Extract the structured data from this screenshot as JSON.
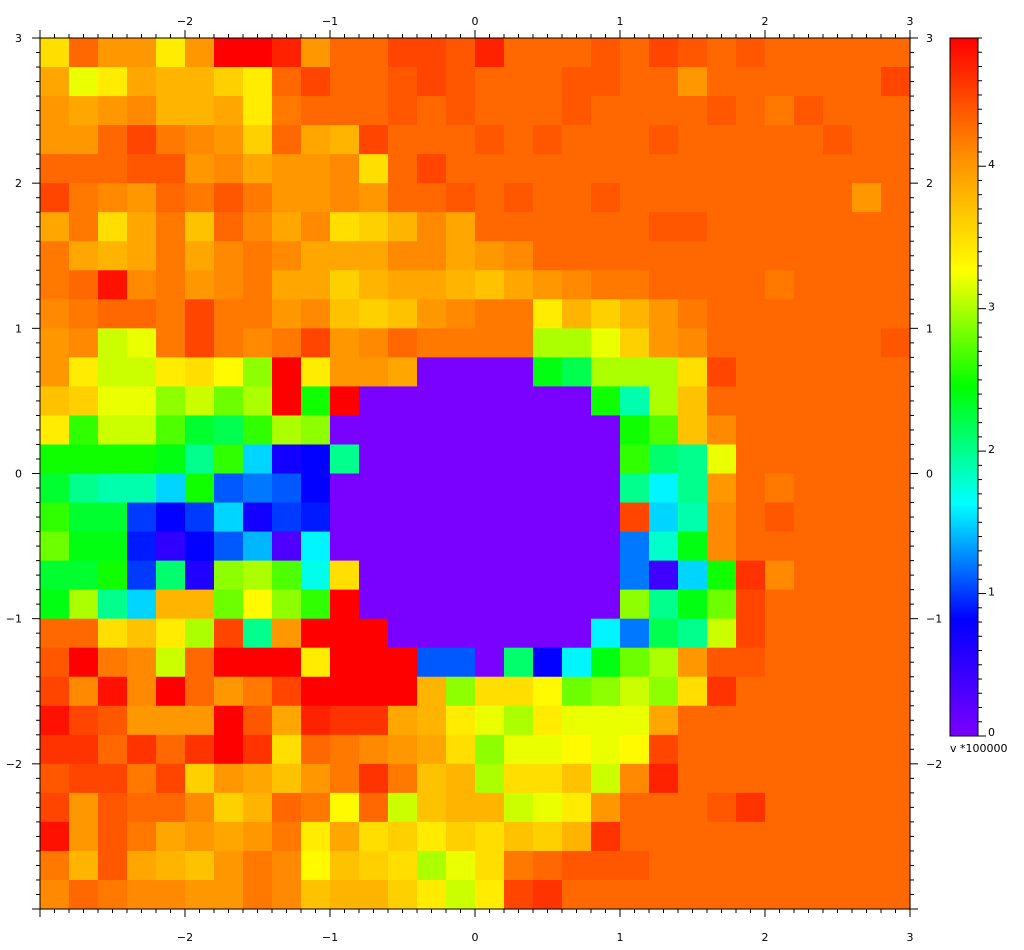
{
  "chart_data": {
    "type": "heatmap",
    "title": "",
    "xlabel": "",
    "ylabel": "",
    "xlim": [
      -3,
      3
    ],
    "ylim": [
      -3,
      3
    ],
    "x_ticks": [
      -2,
      -1,
      0,
      1,
      2,
      3
    ],
    "y_ticks": [
      3,
      2,
      1,
      0,
      -1,
      -2
    ],
    "x_tick_labels": [
      "−2",
      "−1",
      "0",
      "1",
      "2",
      "3"
    ],
    "y_tick_labels": [
      "3",
      "2",
      "1",
      "0",
      "−1",
      "−2"
    ],
    "grid": false,
    "colorbar": {
      "label": "v *100000",
      "range": [
        0,
        4.9
      ],
      "ticks": [
        0,
        1,
        2,
        3,
        4
      ],
      "tick_labels": [
        "0",
        "1",
        "2",
        "3",
        "4"
      ],
      "colormap": [
        "#7a00ff",
        "#0000ff",
        "#00ffff",
        "#00ff00",
        "#ffff00",
        "#ff8c00",
        "#ff0000"
      ]
    },
    "n_cols": 30,
    "n_rows": 30,
    "grid_values": [
      [
        3.5,
        4.3,
        4.0,
        4.0,
        3.4,
        4.0,
        4.9,
        4.9,
        4.7,
        4.0,
        4.3,
        4.3,
        4.5,
        4.5,
        4.4,
        4.7,
        4.3,
        4.3,
        4.3,
        4.4,
        4.3,
        4.5,
        4.4,
        4.3,
        4.4,
        4.3,
        4.3,
        4.3,
        4.3,
        4.3
      ],
      [
        3.9,
        3.2,
        3.4,
        3.9,
        3.8,
        3.8,
        3.6,
        3.4,
        4.3,
        4.5,
        4.3,
        4.3,
        4.4,
        4.5,
        4.4,
        4.3,
        4.3,
        4.3,
        4.4,
        4.4,
        4.3,
        4.3,
        4.0,
        4.3,
        4.3,
        4.3,
        4.3,
        4.3,
        4.3,
        4.5
      ],
      [
        4.0,
        3.9,
        4.0,
        4.1,
        3.8,
        3.8,
        3.9,
        3.4,
        4.2,
        4.3,
        4.3,
        4.3,
        4.4,
        4.3,
        4.4,
        4.3,
        4.3,
        4.3,
        4.4,
        4.3,
        4.3,
        4.3,
        4.3,
        4.4,
        4.3,
        4.2,
        4.4,
        4.3,
        4.3,
        4.3
      ],
      [
        4.0,
        4.0,
        4.3,
        4.5,
        4.2,
        4.1,
        4.0,
        3.6,
        4.3,
        3.9,
        3.8,
        4.5,
        4.3,
        4.3,
        4.3,
        4.4,
        4.3,
        4.4,
        4.3,
        4.3,
        4.3,
        4.4,
        4.3,
        4.3,
        4.3,
        4.3,
        4.3,
        4.4,
        4.3,
        4.3
      ],
      [
        4.3,
        4.3,
        4.3,
        4.4,
        4.4,
        4.0,
        4.1,
        3.9,
        4.0,
        4.0,
        4.1,
        3.5,
        4.3,
        4.5,
        4.3,
        4.3,
        4.3,
        4.3,
        4.3,
        4.3,
        4.3,
        4.3,
        4.3,
        4.3,
        4.3,
        4.3,
        4.3,
        4.3,
        4.3,
        4.3
      ],
      [
        4.5,
        4.2,
        4.1,
        4.0,
        4.3,
        4.2,
        4.4,
        4.2,
        4.0,
        4.0,
        4.1,
        4.0,
        4.3,
        4.3,
        4.4,
        4.3,
        4.4,
        4.3,
        4.3,
        4.4,
        4.3,
        4.3,
        4.3,
        4.3,
        4.3,
        4.3,
        4.3,
        4.3,
        4.0,
        4.3
      ],
      [
        3.9,
        4.2,
        3.5,
        3.9,
        4.2,
        3.7,
        4.3,
        4.1,
        3.9,
        4.1,
        3.5,
        3.6,
        3.8,
        4.1,
        3.9,
        4.3,
        4.3,
        4.3,
        4.3,
        4.3,
        4.3,
        4.4,
        4.4,
        4.3,
        4.3,
        4.3,
        4.3,
        4.3,
        4.3,
        4.3
      ],
      [
        4.2,
        3.9,
        3.8,
        3.9,
        4.2,
        3.9,
        4.1,
        4.2,
        4.1,
        3.9,
        3.9,
        3.9,
        4.1,
        4.1,
        3.9,
        4.0,
        4.1,
        4.3,
        4.3,
        4.3,
        4.3,
        4.3,
        4.3,
        4.3,
        4.3,
        4.3,
        4.3,
        4.3,
        4.3,
        4.3
      ],
      [
        4.2,
        4.3,
        4.8,
        4.1,
        4.2,
        4.0,
        4.1,
        4.2,
        3.9,
        3.9,
        3.6,
        3.8,
        3.9,
        3.9,
        3.8,
        3.7,
        3.9,
        4.0,
        4.1,
        4.2,
        4.2,
        4.3,
        4.3,
        4.3,
        4.3,
        4.2,
        4.3,
        4.3,
        4.3,
        4.3
      ],
      [
        4.1,
        4.2,
        4.3,
        4.3,
        4.2,
        4.5,
        4.2,
        4.2,
        4.0,
        4.1,
        3.7,
        3.6,
        3.7,
        4.0,
        4.1,
        4.2,
        4.2,
        3.4,
        3.8,
        3.6,
        3.8,
        4.0,
        4.2,
        4.3,
        4.3,
        4.3,
        4.3,
        4.3,
        4.3,
        4.3
      ],
      [
        4.0,
        4.1,
        3.1,
        3.2,
        4.2,
        4.5,
        4.2,
        4.1,
        4.2,
        4.5,
        4.0,
        4.1,
        4.3,
        4.2,
        4.2,
        4.2,
        4.2,
        3.0,
        3.0,
        3.2,
        3.6,
        4.0,
        4.1,
        4.3,
        4.3,
        4.3,
        4.3,
        4.3,
        4.3,
        4.4
      ],
      [
        4.0,
        3.4,
        3.1,
        3.1,
        3.4,
        3.5,
        3.3,
        2.9,
        4.9,
        3.4,
        4.0,
        4.0,
        3.9,
        0,
        0,
        0,
        0,
        2.4,
        2.2,
        3.0,
        3.0,
        3.0,
        3.5,
        4.5,
        4.3,
        4.3,
        4.3,
        4.3,
        4.3,
        4.3
      ],
      [
        3.7,
        3.6,
        3.2,
        3.2,
        2.9,
        3.1,
        2.8,
        3.0,
        4.9,
        2.5,
        4.9,
        0,
        0,
        0,
        0,
        0,
        0,
        0,
        0,
        2.5,
        1.9,
        3.0,
        3.7,
        4.3,
        4.3,
        4.3,
        4.3,
        4.3,
        4.3,
        4.3
      ],
      [
        3.4,
        2.6,
        3.1,
        3.1,
        2.7,
        2.3,
        2.2,
        2.6,
        3.0,
        2.9,
        0,
        0,
        0,
        0,
        0,
        0,
        0,
        0,
        0,
        0,
        2.5,
        2.7,
        3.7,
        4.1,
        4.3,
        4.3,
        4.3,
        4.3,
        4.3,
        4.3
      ],
      [
        2.5,
        2.5,
        2.5,
        2.5,
        2.4,
        2.0,
        2.6,
        1.5,
        0.7,
        0.8,
        2.0,
        0,
        0,
        0,
        0,
        0,
        0,
        0,
        0,
        0,
        2.6,
        2.1,
        2.0,
        3.2,
        4.3,
        4.3,
        4.3,
        4.3,
        4.3,
        4.3
      ],
      [
        2.3,
        2.0,
        1.9,
        1.9,
        1.5,
        2.5,
        1.1,
        1.2,
        1.1,
        0.8,
        0,
        0,
        0,
        0,
        0,
        0,
        0,
        0,
        0,
        0,
        2.0,
        1.6,
        2.0,
        4.0,
        4.3,
        4.2,
        4.3,
        4.3,
        4.3,
        4.3
      ],
      [
        2.6,
        2.3,
        2.3,
        1.0,
        0.8,
        1.0,
        1.5,
        0.7,
        1.0,
        0.9,
        0,
        0,
        0,
        0,
        0,
        0,
        0,
        0,
        0,
        0,
        4.5,
        1.5,
        1.9,
        4.1,
        4.3,
        4.4,
        4.3,
        4.3,
        4.3,
        4.3
      ],
      [
        2.8,
        2.4,
        2.4,
        0.9,
        0.5,
        0.8,
        1.1,
        1.4,
        0.3,
        1.6,
        0,
        0,
        0,
        0,
        0,
        0,
        0,
        0,
        0,
        0,
        1.2,
        1.8,
        2.4,
        4.1,
        4.3,
        4.3,
        4.3,
        4.3,
        4.3,
        4.3
      ],
      [
        2.3,
        2.3,
        2.5,
        1.0,
        2.1,
        0.6,
        2.9,
        3.0,
        2.7,
        1.7,
        3.5,
        0,
        0,
        0,
        0,
        0,
        0,
        0,
        0,
        0,
        1.2,
        0.4,
        1.5,
        2.5,
        4.6,
        4.1,
        4.3,
        4.3,
        4.3,
        4.3
      ],
      [
        2.4,
        3.0,
        2.0,
        1.5,
        3.8,
        3.8,
        2.8,
        3.3,
        2.9,
        2.6,
        4.9,
        0,
        0,
        0,
        0,
        0,
        0,
        0,
        0,
        0,
        2.9,
        2.0,
        2.4,
        2.8,
        4.5,
        4.3,
        4.3,
        4.3,
        4.3,
        4.3
      ],
      [
        4.3,
        4.3,
        3.5,
        3.7,
        3.4,
        3.0,
        4.5,
        2.0,
        4.0,
        4.9,
        4.9,
        4.9,
        0,
        0,
        0,
        0,
        0,
        0,
        0,
        1.6,
        1.2,
        2.2,
        2.0,
        3.1,
        4.5,
        4.3,
        4.3,
        4.3,
        4.3,
        4.3
      ],
      [
        4.4,
        4.9,
        4.2,
        4.1,
        3.1,
        4.3,
        4.9,
        4.9,
        4.9,
        3.4,
        4.9,
        4.9,
        4.9,
        1.1,
        1.1,
        0,
        2.1,
        0.8,
        1.6,
        2.4,
        2.8,
        3.0,
        4.0,
        4.4,
        4.4,
        4.3,
        4.3,
        4.3,
        4.3,
        4.3
      ],
      [
        4.5,
        4.1,
        4.8,
        4.1,
        4.9,
        4.3,
        4.0,
        4.2,
        4.5,
        4.9,
        4.9,
        4.9,
        4.9,
        3.8,
        2.9,
        3.5,
        3.5,
        3.3,
        2.8,
        2.9,
        3.1,
        2.9,
        3.5,
        4.6,
        4.3,
        4.3,
        4.3,
        4.3,
        4.3,
        4.3
      ],
      [
        4.8,
        4.5,
        4.4,
        4.0,
        4.0,
        4.0,
        4.9,
        4.4,
        3.9,
        4.7,
        4.6,
        4.6,
        3.9,
        3.8,
        3.4,
        3.2,
        3.0,
        3.4,
        3.2,
        3.2,
        3.2,
        3.9,
        4.3,
        4.3,
        4.3,
        4.3,
        4.3,
        4.3,
        4.3,
        4.3
      ],
      [
        4.6,
        4.6,
        4.3,
        4.6,
        4.3,
        4.6,
        4.9,
        4.6,
        3.5,
        4.3,
        4.2,
        4.1,
        4.0,
        3.9,
        3.5,
        2.9,
        3.2,
        3.2,
        3.3,
        3.2,
        3.3,
        4.5,
        4.3,
        4.3,
        4.3,
        4.3,
        4.3,
        4.3,
        4.3,
        4.3
      ],
      [
        4.4,
        4.5,
        4.5,
        4.2,
        4.5,
        3.6,
        4.0,
        3.9,
        3.7,
        4.0,
        4.2,
        4.6,
        4.2,
        3.7,
        3.8,
        3.0,
        3.5,
        3.5,
        3.7,
        3.1,
        4.1,
        4.7,
        4.3,
        4.3,
        4.3,
        4.3,
        4.3,
        4.3,
        4.3,
        4.3
      ],
      [
        4.5,
        4.0,
        4.4,
        4.3,
        4.3,
        4.1,
        3.6,
        3.8,
        4.3,
        4.2,
        3.3,
        4.3,
        3.1,
        3.7,
        3.8,
        3.8,
        3.1,
        3.2,
        3.4,
        4.0,
        4.3,
        4.3,
        4.3,
        4.4,
        4.6,
        4.3,
        4.3,
        4.3,
        4.3,
        4.3
      ],
      [
        4.8,
        4.0,
        4.4,
        4.2,
        3.9,
        4.0,
        3.9,
        4.0,
        4.2,
        3.4,
        3.9,
        3.5,
        3.6,
        3.4,
        3.6,
        3.5,
        3.7,
        3.6,
        3.8,
        4.6,
        4.3,
        4.3,
        4.3,
        4.3,
        4.3,
        4.3,
        4.3,
        4.3,
        4.3,
        4.3
      ],
      [
        4.2,
        3.8,
        4.4,
        3.9,
        3.8,
        3.7,
        4.0,
        4.2,
        4.1,
        3.3,
        3.7,
        3.6,
        3.5,
        3.0,
        3.2,
        3.5,
        4.2,
        4.3,
        4.4,
        4.4,
        4.4,
        4.3,
        4.3,
        4.3,
        4.3,
        4.3,
        4.3,
        4.3,
        4.3,
        4.3
      ],
      [
        4.1,
        4.3,
        4.2,
        4.1,
        4.1,
        4.0,
        4.0,
        4.2,
        4.1,
        3.7,
        3.8,
        3.8,
        3.6,
        3.4,
        3.1,
        3.4,
        4.5,
        4.6,
        4.3,
        4.3,
        4.3,
        4.3,
        4.3,
        4.3,
        4.3,
        4.3,
        4.3,
        4.3,
        4.3,
        4.3
      ]
    ]
  }
}
